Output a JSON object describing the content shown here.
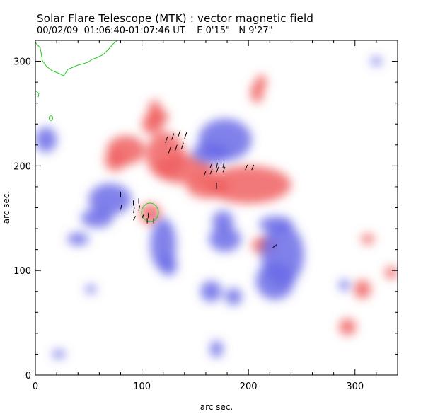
{
  "chart_data": {
    "type": "heatmap",
    "title": "Solar Flare Telescope (MTK) : vector magnetic field",
    "subtitle": {
      "date": "00/02/09",
      "time_range": "01:06:40-01:07:46 UT",
      "lon": "E 0'15\"",
      "lat": "N 9'27\""
    },
    "xlabel": "arc sec.",
    "ylabel": "arc sec.",
    "xlim": [
      0,
      340
    ],
    "ylim": [
      0,
      320
    ],
    "x_ticks": [
      0,
      100,
      200,
      300
    ],
    "y_ticks": [
      0,
      100,
      200,
      300
    ],
    "colors": {
      "positive": "#f06060",
      "negative": "#6b6be8",
      "contour": "#22cc22",
      "vectors": "#000000"
    },
    "positive_regions": [
      {
        "cx": 122,
        "cy": 210,
        "rx": 18,
        "ry": 22
      },
      {
        "cx": 140,
        "cy": 197,
        "rx": 28,
        "ry": 14
      },
      {
        "cx": 200,
        "cy": 182,
        "rx": 40,
        "ry": 18
      },
      {
        "cx": 162,
        "cy": 180,
        "rx": 20,
        "ry": 11
      },
      {
        "cx": 108,
        "cy": 154,
        "rx": 10,
        "ry": 10
      },
      {
        "cx": 85,
        "cy": 215,
        "rx": 18,
        "ry": 14
      },
      {
        "cx": 75,
        "cy": 205,
        "rx": 10,
        "ry": 10
      },
      {
        "cx": 110,
        "cy": 240,
        "rx": 10,
        "ry": 10
      },
      {
        "cx": 115,
        "cy": 247,
        "rx": 10,
        "ry": 7
      },
      {
        "cx": 112,
        "cy": 253,
        "rx": 6,
        "ry": 10
      },
      {
        "cx": 208,
        "cy": 270,
        "rx": 6,
        "ry": 10
      },
      {
        "cx": 212,
        "cy": 280,
        "rx": 5,
        "ry": 7
      },
      {
        "cx": 215,
        "cy": 124,
        "rx": 12,
        "ry": 8
      },
      {
        "cx": 307,
        "cy": 82,
        "rx": 8,
        "ry": 9
      },
      {
        "cx": 293,
        "cy": 46,
        "rx": 8,
        "ry": 8
      },
      {
        "cx": 334,
        "cy": 98,
        "rx": 6,
        "ry": 6
      },
      {
        "cx": 312,
        "cy": 130,
        "rx": 6,
        "ry": 5
      }
    ],
    "negative_regions": [
      {
        "cx": 178,
        "cy": 225,
        "rx": 25,
        "ry": 20
      },
      {
        "cx": 165,
        "cy": 212,
        "rx": 18,
        "ry": 10
      },
      {
        "cx": 70,
        "cy": 168,
        "rx": 20,
        "ry": 15
      },
      {
        "cx": 58,
        "cy": 150,
        "rx": 15,
        "ry": 9
      },
      {
        "cx": 40,
        "cy": 130,
        "rx": 10,
        "ry": 6
      },
      {
        "cx": 120,
        "cy": 125,
        "rx": 12,
        "ry": 25
      },
      {
        "cx": 125,
        "cy": 105,
        "rx": 8,
        "ry": 10
      },
      {
        "cx": 178,
        "cy": 130,
        "rx": 15,
        "ry": 12
      },
      {
        "cx": 176,
        "cy": 147,
        "rx": 10,
        "ry": 10
      },
      {
        "cx": 232,
        "cy": 115,
        "rx": 20,
        "ry": 30
      },
      {
        "cx": 225,
        "cy": 90,
        "rx": 18,
        "ry": 18
      },
      {
        "cx": 226,
        "cy": 144,
        "rx": 16,
        "ry": 8
      },
      {
        "cx": 52,
        "cy": 82,
        "rx": 5,
        "ry": 4
      },
      {
        "cx": 165,
        "cy": 80,
        "rx": 10,
        "ry": 10
      },
      {
        "cx": 186,
        "cy": 75,
        "rx": 8,
        "ry": 8
      },
      {
        "cx": 22,
        "cy": 20,
        "rx": 6,
        "ry": 4
      },
      {
        "cx": 170,
        "cy": 25,
        "rx": 6,
        "ry": 8
      },
      {
        "cx": 290,
        "cy": 86,
        "rx": 5,
        "ry": 5
      },
      {
        "cx": 10,
        "cy": 225,
        "rx": 10,
        "ry": 12
      },
      {
        "cx": 320,
        "cy": 300,
        "rx": 5,
        "ry": 4
      }
    ],
    "vectors": [
      {
        "x": 122,
        "y": 222,
        "dx": 2,
        "dy": 6
      },
      {
        "x": 128,
        "y": 225,
        "dx": 2,
        "dy": 6
      },
      {
        "x": 134,
        "y": 228,
        "dx": 2,
        "dy": 6
      },
      {
        "x": 140,
        "y": 226,
        "dx": 2,
        "dy": 6
      },
      {
        "x": 125,
        "y": 212,
        "dx": 2,
        "dy": 6
      },
      {
        "x": 131,
        "y": 214,
        "dx": 2,
        "dy": 6
      },
      {
        "x": 137,
        "y": 216,
        "dx": 2,
        "dy": 6
      },
      {
        "x": 158,
        "y": 190,
        "dx": 2,
        "dy": 5
      },
      {
        "x": 164,
        "y": 192,
        "dx": 2,
        "dy": 5
      },
      {
        "x": 170,
        "y": 194,
        "dx": 2,
        "dy": 5
      },
      {
        "x": 176,
        "y": 194,
        "dx": 2,
        "dy": 5
      },
      {
        "x": 164,
        "y": 198,
        "dx": 2,
        "dy": 5
      },
      {
        "x": 170,
        "y": 198,
        "dx": 1,
        "dy": 5
      },
      {
        "x": 176,
        "y": 198,
        "dx": 1,
        "dy": 5
      },
      {
        "x": 197,
        "y": 196,
        "dx": 2,
        "dy": 5
      },
      {
        "x": 203,
        "y": 196,
        "dx": 2,
        "dy": 5
      },
      {
        "x": 170,
        "y": 178,
        "dx": 0,
        "dy": 6
      },
      {
        "x": 80,
        "y": 170,
        "dx": 0,
        "dy": 5
      },
      {
        "x": 80,
        "y": 158,
        "dx": 1,
        "dy": 5
      },
      {
        "x": 92,
        "y": 162,
        "dx": 0,
        "dy": 5
      },
      {
        "x": 97,
        "y": 164,
        "dx": 0,
        "dy": 5
      },
      {
        "x": 92,
        "y": 155,
        "dx": 1,
        "dy": 5
      },
      {
        "x": 97,
        "y": 157,
        "dx": 1,
        "dy": 5
      },
      {
        "x": 92,
        "y": 148,
        "dx": 2,
        "dy": 4
      },
      {
        "x": 100,
        "y": 150,
        "dx": 2,
        "dy": 4
      },
      {
        "x": 106,
        "y": 150,
        "dx": 0,
        "dy": 5
      },
      {
        "x": 111,
        "y": 145,
        "dx": 0,
        "dy": 5
      },
      {
        "x": 105,
        "y": 145,
        "dx": 0,
        "dy": 5
      },
      {
        "x": 223,
        "y": 122,
        "dx": 4,
        "dy": 3
      }
    ]
  }
}
